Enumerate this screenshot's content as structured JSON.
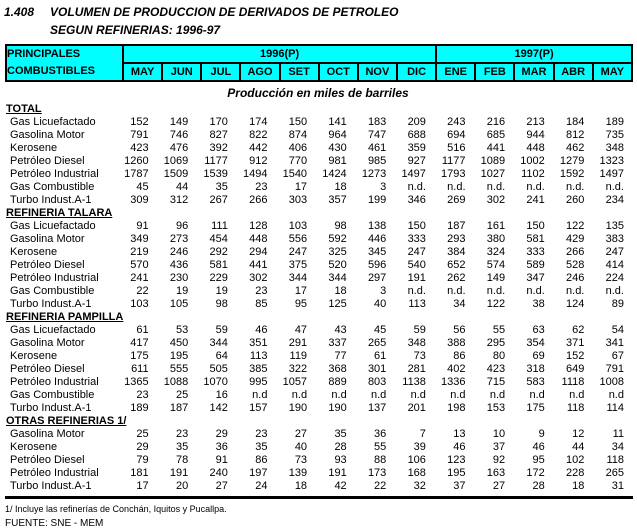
{
  "title": {
    "number": "1.408",
    "line1": "VOLUMEN DE PRODUCCION DE DERIVADOS DE PETROLEO",
    "line2": "SEGUN REFINERIAS: 1996-97"
  },
  "header": {
    "col_label_line1": "PRINCIPALES",
    "col_label_line2": "COMBUSTIBLES",
    "year1": "1996(P)",
    "year2": "1997(P)",
    "months_1996": [
      "MAY",
      "JUN",
      "JUL",
      "AGO",
      "SET",
      "OCT",
      "NOV",
      "DIC"
    ],
    "months_1997": [
      "ENE",
      "FEB",
      "MAR",
      "ABR",
      "MAY"
    ]
  },
  "subtitle": "Producción en miles de barriles",
  "colors": {
    "header_bg": "#00FFFF",
    "border": "#000000",
    "text": "#000000",
    "page_bg": "#FFFFFF"
  },
  "sections": [
    {
      "name": "TOTAL",
      "rows": [
        {
          "label": "Gas Licuefactado",
          "values": [
            "152",
            "149",
            "170",
            "174",
            "150",
            "141",
            "183",
            "209",
            "243",
            "216",
            "213",
            "184",
            "189"
          ]
        },
        {
          "label": "Gasolina Motor",
          "values": [
            "791",
            "746",
            "827",
            "822",
            "874",
            "964",
            "747",
            "688",
            "694",
            "685",
            "944",
            "812",
            "735"
          ]
        },
        {
          "label": "Kerosene",
          "values": [
            "423",
            "476",
            "392",
            "442",
            "406",
            "430",
            "461",
            "359",
            "516",
            "441",
            "448",
            "462",
            "348"
          ]
        },
        {
          "label": "Petróleo Diesel",
          "values": [
            "1260",
            "1069",
            "1177",
            "912",
            "770",
            "981",
            "985",
            "927",
            "1177",
            "1089",
            "1002",
            "1279",
            "1323"
          ]
        },
        {
          "label": "Petróleo Industrial",
          "values": [
            "1787",
            "1509",
            "1539",
            "1494",
            "1540",
            "1424",
            "1273",
            "1497",
            "1793",
            "1027",
            "1102",
            "1592",
            "1497"
          ]
        },
        {
          "label": "Gas Combustible",
          "values": [
            "45",
            "44",
            "35",
            "23",
            "17",
            "18",
            "3",
            "n.d.",
            "n.d.",
            "n.d.",
            "n.d.",
            "n.d.",
            "n.d."
          ]
        },
        {
          "label": "Turbo Indust.A-1",
          "values": [
            "309",
            "312",
            "267",
            "266",
            "303",
            "357",
            "199",
            "346",
            "269",
            "302",
            "241",
            "260",
            "234"
          ]
        }
      ]
    },
    {
      "name": "REFINERIA TALARA",
      "rows": [
        {
          "label": "Gas Licuefactado",
          "values": [
            "91",
            "96",
            "111",
            "128",
            "103",
            "98",
            "138",
            "150",
            "187",
            "161",
            "150",
            "122",
            "135"
          ]
        },
        {
          "label": "Gasolina Motor",
          "values": [
            "349",
            "273",
            "454",
            "448",
            "556",
            "592",
            "446",
            "333",
            "293",
            "380",
            "581",
            "429",
            "383"
          ]
        },
        {
          "label": "Kerosene",
          "values": [
            "219",
            "246",
            "292",
            "294",
            "247",
            "325",
            "345",
            "247",
            "384",
            "324",
            "333",
            "266",
            "247"
          ]
        },
        {
          "label": "Petróleo Diesel",
          "values": [
            "570",
            "436",
            "581",
            "441",
            "375",
            "520",
            "596",
            "540",
            "652",
            "574",
            "589",
            "528",
            "414"
          ]
        },
        {
          "label": "Petróleo Industrial",
          "values": [
            "241",
            "230",
            "229",
            "302",
            "344",
            "344",
            "297",
            "191",
            "262",
            "149",
            "347",
            "246",
            "224"
          ]
        },
        {
          "label": "Gas Combustible",
          "values": [
            "22",
            "19",
            "19",
            "23",
            "17",
            "18",
            "3",
            "n.d.",
            "n.d.",
            "n.d.",
            "n.d.",
            "n.d.",
            "n.d."
          ]
        },
        {
          "label": "Turbo Indust.A-1",
          "values": [
            "103",
            "105",
            "98",
            "85",
            "95",
            "125",
            "40",
            "113",
            "34",
            "122",
            "38",
            "124",
            "89"
          ]
        }
      ]
    },
    {
      "name": "REFINERIA PAMPILLA",
      "rows": [
        {
          "label": "Gas Licuefactado",
          "values": [
            "61",
            "53",
            "59",
            "46",
            "47",
            "43",
            "45",
            "59",
            "56",
            "55",
            "63",
            "62",
            "54"
          ]
        },
        {
          "label": "Gasolina Motor",
          "values": [
            "417",
            "450",
            "344",
            "351",
            "291",
            "337",
            "265",
            "348",
            "388",
            "295",
            "354",
            "371",
            "341"
          ]
        },
        {
          "label": "Kerosene",
          "values": [
            "175",
            "195",
            "64",
            "113",
            "119",
            "77",
            "61",
            "73",
            "86",
            "80",
            "69",
            "152",
            "67"
          ]
        },
        {
          "label": "Petróleo Diesel",
          "values": [
            "611",
            "555",
            "505",
            "385",
            "322",
            "368",
            "301",
            "281",
            "402",
            "423",
            "318",
            "649",
            "791"
          ]
        },
        {
          "label": "Petróleo Industrial",
          "values": [
            "1365",
            "1088",
            "1070",
            "995",
            "1057",
            "889",
            "803",
            "1138",
            "1336",
            "715",
            "583",
            "1118",
            "1008"
          ]
        },
        {
          "label": "Gas Combustible",
          "values": [
            "23",
            "25",
            "16",
            "n.d",
            "n.d",
            "n.d",
            "n.d",
            "n.d",
            "n.d",
            "n.d",
            "n.d",
            "n.d",
            "n.d"
          ]
        },
        {
          "label": "Turbo Indust.A-1",
          "values": [
            "189",
            "187",
            "142",
            "157",
            "190",
            "190",
            "137",
            "201",
            "198",
            "153",
            "175",
            "118",
            "114"
          ]
        }
      ]
    },
    {
      "name": "OTRAS REFINERIAS 1/",
      "rows": [
        {
          "label": "Gasolina Motor",
          "values": [
            "25",
            "23",
            "29",
            "23",
            "27",
            "35",
            "36",
            "7",
            "13",
            "10",
            "9",
            "12",
            "11"
          ]
        },
        {
          "label": "Kerosene",
          "values": [
            "29",
            "35",
            "36",
            "35",
            "40",
            "28",
            "55",
            "39",
            "46",
            "37",
            "46",
            "44",
            "34"
          ]
        },
        {
          "label": "Petróleo Diesel",
          "values": [
            "79",
            "78",
            "91",
            "86",
            "73",
            "93",
            "88",
            "106",
            "123",
            "92",
            "95",
            "102",
            "118"
          ]
        },
        {
          "label": "Petróleo Industrial",
          "values": [
            "181",
            "191",
            "240",
            "197",
            "139",
            "191",
            "173",
            "168",
            "195",
            "163",
            "172",
            "228",
            "265"
          ]
        },
        {
          "label": "Turbo Indust.A-1",
          "values": [
            "17",
            "20",
            "27",
            "24",
            "18",
            "42",
            "22",
            "32",
            "37",
            "27",
            "28",
            "18",
            "31"
          ]
        }
      ]
    }
  ],
  "footer": {
    "note": "1/ Incluye las refinerías de Conchán, Iquitos y Pucallpa.",
    "source": "FUENTE: SNE - MEM"
  }
}
